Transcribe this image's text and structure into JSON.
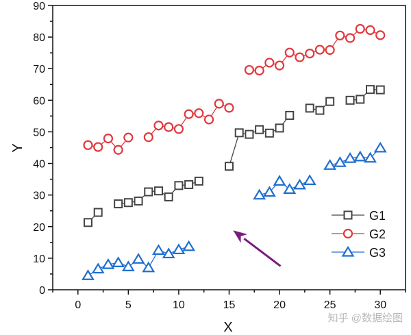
{
  "chart_data": {
    "type": "line",
    "title": "",
    "xlabel": "X",
    "ylabel": "Y",
    "xlim": [
      -2.5,
      32.5
    ],
    "ylim": [
      0,
      90
    ],
    "xticks": [
      0,
      5,
      10,
      15,
      20,
      25,
      30
    ],
    "yticks": [
      0,
      10,
      20,
      30,
      40,
      50,
      60,
      70,
      80,
      90
    ],
    "grid": false,
    "legend_position": "right",
    "series": [
      {
        "name": "G1",
        "color": "#444444",
        "marker": "square",
        "points": [
          [
            1,
            21.3
          ],
          [
            2,
            24.5
          ],
          null,
          [
            4,
            27.2
          ],
          [
            5,
            27.6
          ],
          [
            6,
            28.1
          ],
          [
            7,
            31.0
          ],
          [
            8,
            31.3
          ],
          [
            9,
            29.4
          ],
          [
            10,
            33.0
          ],
          [
            11,
            33.3
          ],
          [
            12,
            34.4
          ],
          null,
          [
            15,
            39.1
          ],
          [
            16,
            49.7
          ],
          [
            17,
            49.2
          ],
          [
            18,
            50.7
          ],
          [
            19,
            49.6
          ],
          [
            20,
            51.2
          ],
          [
            21,
            55.2
          ],
          null,
          [
            23,
            57.5
          ],
          [
            24,
            56.8
          ],
          [
            25,
            59.6
          ],
          null,
          [
            27,
            60.0
          ],
          [
            28,
            60.3
          ],
          [
            29,
            63.4
          ],
          [
            30,
            63.3
          ]
        ]
      },
      {
        "name": "G2",
        "color": "#e0393e",
        "marker": "circle",
        "points": [
          [
            1,
            45.8
          ],
          [
            2,
            45.2
          ],
          [
            3,
            47.9
          ],
          [
            4,
            44.3
          ],
          [
            5,
            48.2
          ],
          null,
          [
            7,
            48.3
          ],
          [
            8,
            52.0
          ],
          [
            9,
            51.5
          ],
          [
            10,
            50.9
          ],
          [
            11,
            55.6
          ],
          [
            12,
            55.9
          ],
          [
            13,
            53.9
          ],
          [
            14,
            58.9
          ],
          [
            15,
            57.6
          ],
          null,
          [
            17,
            69.6
          ],
          [
            18,
            69.4
          ],
          [
            19,
            71.9
          ],
          [
            20,
            71.0
          ],
          [
            21,
            75.1
          ],
          [
            22,
            73.6
          ],
          [
            23,
            74.8
          ],
          [
            24,
            76.0
          ],
          [
            25,
            75.9
          ],
          [
            26,
            80.5
          ],
          [
            27,
            79.7
          ],
          [
            28,
            82.6
          ],
          [
            29,
            82.2
          ],
          [
            30,
            80.6
          ]
        ]
      },
      {
        "name": "G3",
        "color": "#1f6fd0",
        "marker": "triangle",
        "points": [
          [
            1,
            4.5
          ],
          [
            2,
            6.6
          ],
          [
            3,
            8.0
          ],
          [
            4,
            8.6
          ],
          [
            5,
            7.3
          ],
          [
            6,
            9.7
          ],
          [
            7,
            7.0
          ],
          [
            8,
            12.5
          ],
          [
            9,
            11.4
          ],
          [
            10,
            12.7
          ],
          [
            11,
            13.7
          ],
          null,
          [
            18,
            30.0
          ],
          [
            19,
            30.9
          ],
          [
            20,
            34.4
          ],
          [
            21,
            31.8
          ],
          [
            22,
            33.2
          ],
          [
            23,
            34.6
          ],
          null,
          [
            25,
            39.4
          ],
          [
            26,
            40.3
          ],
          [
            27,
            41.6
          ],
          [
            28,
            42.1
          ],
          [
            29,
            41.7
          ],
          [
            30,
            44.9
          ]
        ]
      }
    ],
    "annotations": [
      {
        "type": "arrow",
        "color": "#7a1a7e",
        "from": [
          20.1,
          7.5
        ],
        "to": [
          15.4,
          18.8
        ]
      }
    ]
  },
  "watermark": "知乎 @数据绘图"
}
